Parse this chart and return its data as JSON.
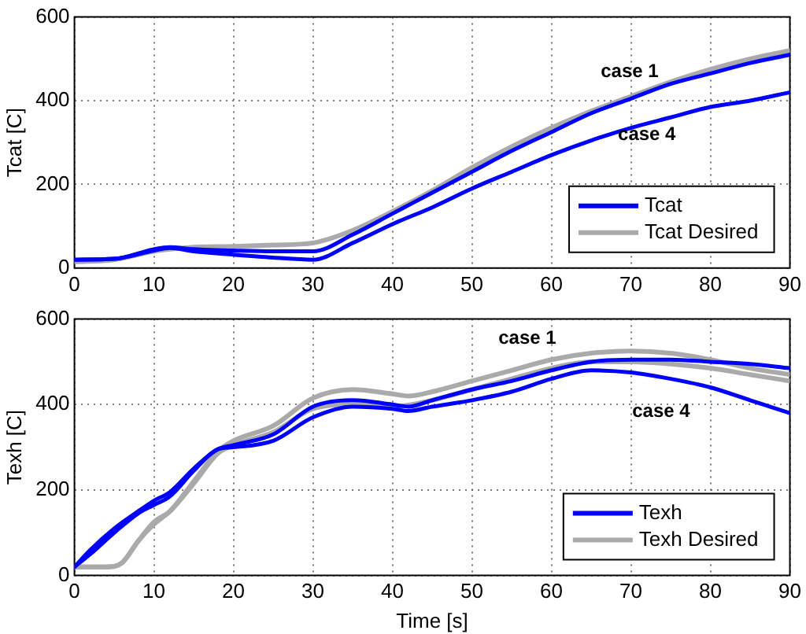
{
  "chart_data": [
    {
      "type": "line",
      "ylabel": "Tcat [C]",
      "xlim": [
        0,
        90
      ],
      "ylim": [
        0,
        600
      ],
      "xticks": [
        0,
        10,
        20,
        30,
        40,
        50,
        60,
        70,
        80,
        90
      ],
      "yticks": [
        0,
        200,
        400,
        600
      ],
      "grid": true,
      "legend": "bottom right",
      "line_style": "solid",
      "marker": "none",
      "series": [
        {
          "name": "Tcat",
          "color": "#0000ff",
          "x": [
            0,
            5,
            10,
            12,
            15,
            20,
            25,
            30,
            35,
            40,
            45,
            50,
            55,
            60,
            65,
            70,
            75,
            80,
            85,
            90
          ],
          "values": [
            20,
            22,
            45,
            50,
            45,
            42,
            40,
            40,
            80,
            130,
            180,
            230,
            280,
            325,
            370,
            405,
            440,
            465,
            490,
            510
          ]
        },
        {
          "color": "#0000ff",
          "x": [
            0,
            5,
            10,
            12,
            15,
            20,
            25,
            30,
            35,
            40,
            45,
            50,
            55,
            60,
            65,
            70,
            75,
            80,
            85,
            90
          ],
          "values": [
            20,
            22,
            42,
            48,
            40,
            32,
            25,
            20,
            60,
            105,
            145,
            190,
            230,
            270,
            305,
            335,
            360,
            385,
            400,
            420
          ]
        },
        {
          "name": "Tcat Desired",
          "color": "#aaaaaa",
          "x": [
            0,
            5,
            10,
            12,
            15,
            20,
            25,
            30,
            35,
            40,
            45,
            50,
            55,
            60,
            65,
            70,
            75,
            80,
            85,
            90
          ],
          "values": [
            15,
            20,
            40,
            45,
            50,
            52,
            55,
            60,
            90,
            135,
            185,
            240,
            290,
            335,
            375,
            410,
            445,
            475,
            500,
            520
          ]
        }
      ],
      "annotations": [
        "case 1",
        "case 4"
      ]
    },
    {
      "type": "line",
      "xlabel": "Time [s]",
      "ylabel": "Texh [C]",
      "xlim": [
        0,
        90
      ],
      "ylim": [
        0,
        600
      ],
      "xticks": [
        0,
        10,
        20,
        30,
        40,
        50,
        60,
        70,
        80,
        90
      ],
      "yticks": [
        0,
        200,
        400,
        600
      ],
      "grid": true,
      "legend": "bottom right",
      "line_style": "solid",
      "marker": "none",
      "series": [
        {
          "name": "Texh",
          "color": "#0000ff",
          "x": [
            0,
            2,
            5,
            8,
            10,
            12,
            15,
            18,
            20,
            25,
            30,
            35,
            40,
            42,
            45,
            50,
            55,
            60,
            65,
            70,
            75,
            80,
            85,
            90
          ],
          "values": [
            20,
            60,
            110,
            150,
            175,
            195,
            250,
            295,
            305,
            330,
            395,
            410,
            400,
            395,
            410,
            435,
            455,
            480,
            500,
            505,
            505,
            500,
            495,
            485
          ]
        },
        {
          "color": "#0000ff",
          "x": [
            0,
            2,
            5,
            8,
            10,
            12,
            15,
            18,
            20,
            25,
            30,
            35,
            40,
            42,
            45,
            50,
            55,
            60,
            65,
            70,
            75,
            80,
            85,
            90
          ],
          "values": [
            20,
            50,
            100,
            145,
            165,
            185,
            245,
            295,
            300,
            315,
            370,
            395,
            390,
            385,
            395,
            410,
            430,
            460,
            480,
            475,
            460,
            440,
            410,
            380
          ]
        },
        {
          "name": "Texh Desired",
          "color": "#aaaaaa",
          "x": [
            0,
            4,
            6,
            8,
            10,
            12,
            15,
            18,
            20,
            25,
            30,
            35,
            40,
            42,
            45,
            50,
            55,
            60,
            65,
            70,
            75,
            80,
            85,
            90
          ],
          "values": [
            20,
            20,
            30,
            80,
            125,
            150,
            220,
            290,
            315,
            350,
            415,
            435,
            425,
            420,
            430,
            455,
            480,
            505,
            520,
            525,
            520,
            505,
            485,
            470
          ]
        },
        {
          "color": "#aaaaaa",
          "x": [
            0,
            4,
            6,
            8,
            10,
            12,
            15,
            18,
            20,
            25,
            30,
            35,
            40,
            45,
            50,
            55,
            60,
            65,
            70,
            75,
            80,
            85,
            90
          ],
          "values": [
            20,
            20,
            30,
            80,
            120,
            150,
            215,
            285,
            305,
            335,
            390,
            400,
            395,
            410,
            435,
            460,
            485,
            500,
            500,
            495,
            485,
            470,
            455
          ]
        }
      ],
      "annotations": [
        "case 1",
        "case 4"
      ]
    }
  ]
}
